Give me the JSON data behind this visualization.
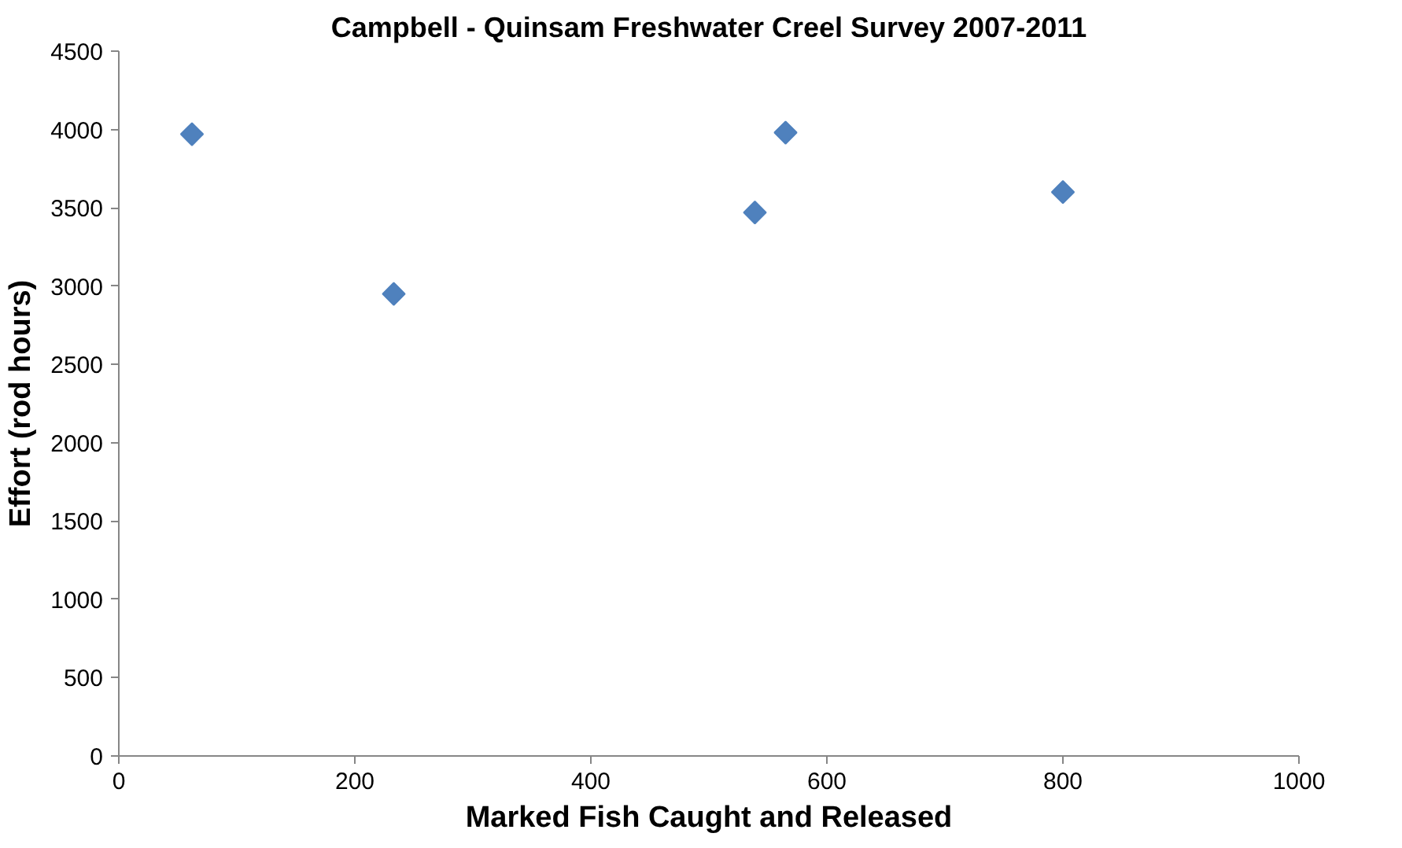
{
  "chart_data": {
    "type": "scatter",
    "title": "Campbell - Quinsam Freshwater Creel Survey 2007-2011",
    "xlabel": "Marked Fish Caught and Released",
    "ylabel": "Effort (rod hours)",
    "x": [
      62,
      233,
      539,
      565,
      800
    ],
    "series": [
      {
        "color": "#4f81bd",
        "values": [
          3970,
          2950,
          3470,
          3980,
          3600
        ]
      }
    ],
    "xlim": [
      0,
      1000
    ],
    "xticks": [
      0,
      200,
      400,
      600,
      800,
      1000
    ],
    "ylim": [
      0,
      4500
    ],
    "yticks": [
      0,
      500,
      1000,
      1500,
      2000,
      2500,
      3000,
      3500,
      4000,
      4500
    ],
    "marker": "diamond",
    "grid": false
  }
}
